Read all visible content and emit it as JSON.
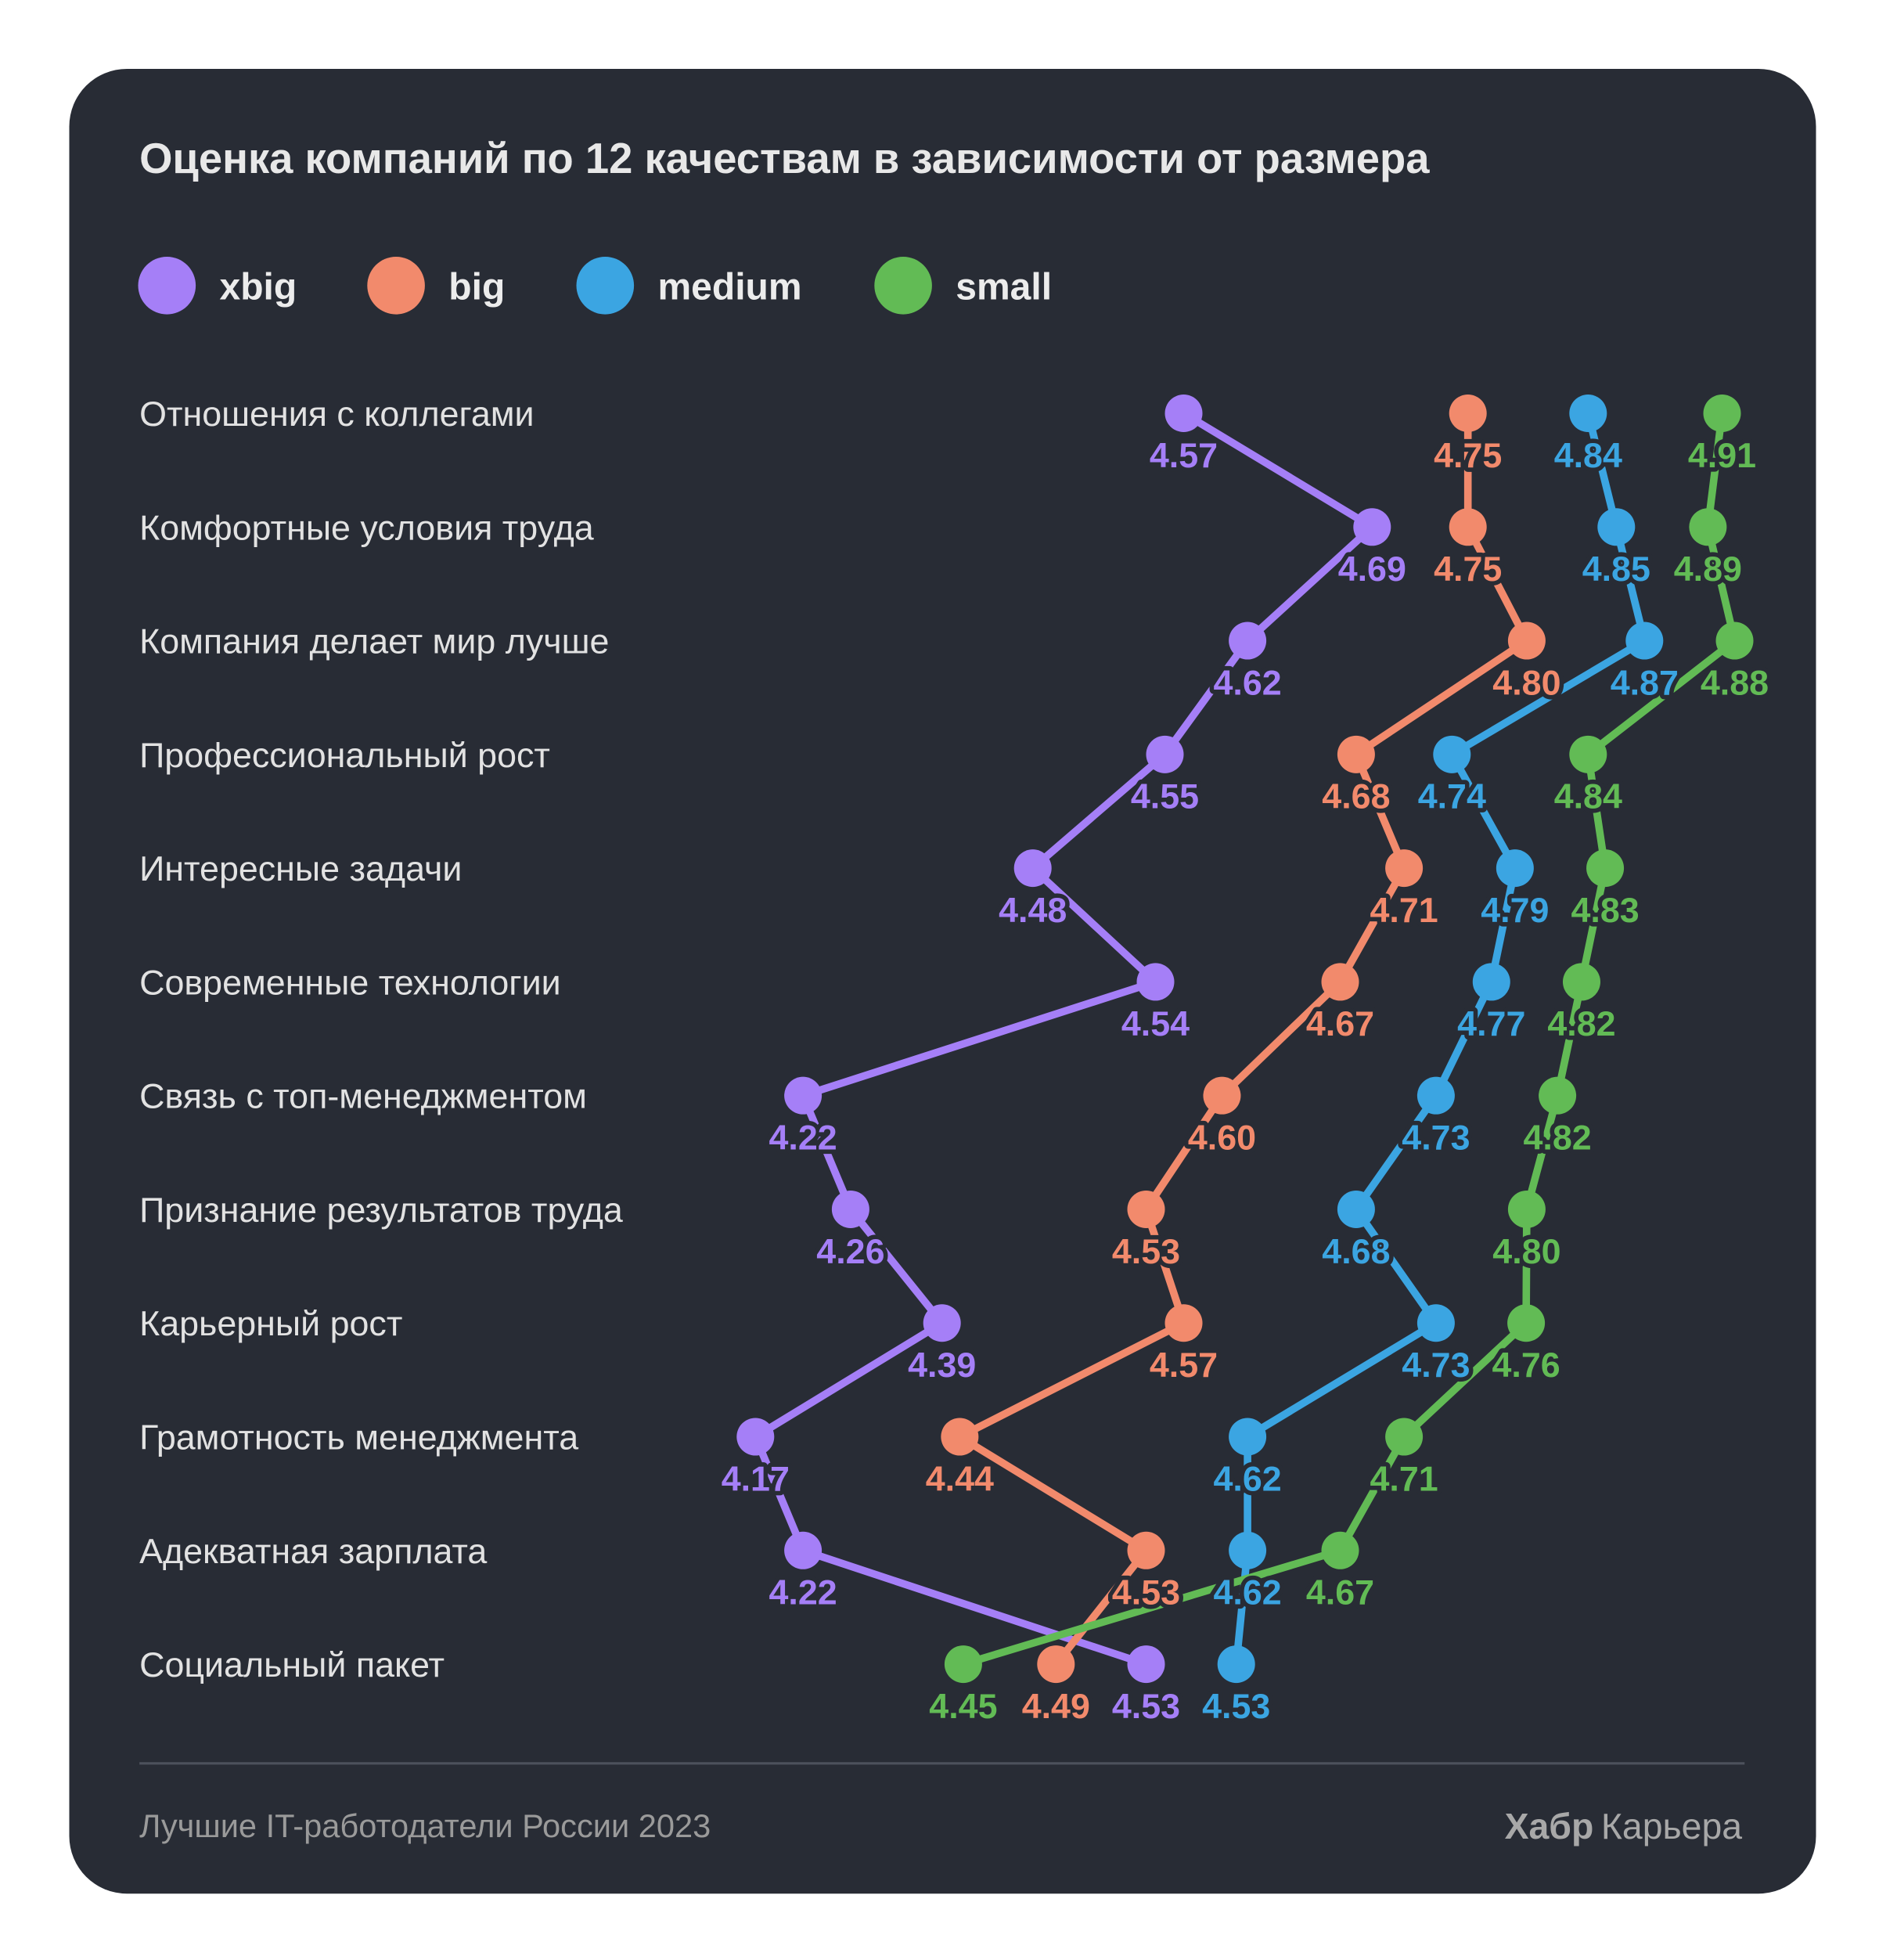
{
  "chart_data": {
    "type": "line",
    "title": "Оценка компаний по 12 качествам в зависимости от размера",
    "orientation": "horizontal",
    "legend_position": "top-left",
    "grid": false,
    "categories": [
      "Отношения с коллегами",
      "Комфортные условия труда",
      "Компания делает мир лучше",
      "Профессиональный рост",
      "Интересные задачи",
      "Современные технологии",
      "Связь с топ-менеджментом",
      "Признание результатов труда",
      "Карьерный рост",
      "Грамотность менеджмента",
      "Адекватная зарплата",
      "Социальный пакет"
    ],
    "series": [
      {
        "name": "xbig",
        "color": "#a57ff7",
        "values": [
          4.57,
          4.69,
          4.62,
          4.55,
          4.48,
          4.54,
          4.22,
          4.26,
          4.39,
          4.17,
          4.22,
          4.53
        ]
      },
      {
        "name": "big",
        "color": "#f28a6c",
        "values": [
          4.75,
          4.75,
          4.8,
          4.68,
          4.71,
          4.67,
          4.6,
          4.53,
          4.57,
          4.44,
          4.53,
          4.49
        ]
      },
      {
        "name": "medium",
        "color": "#3ba5e2",
        "values": [
          4.84,
          4.85,
          4.87,
          4.74,
          4.79,
          4.77,
          4.73,
          4.68,
          4.73,
          4.62,
          4.62,
          4.53
        ]
      },
      {
        "name": "small",
        "color": "#62bb55",
        "values": [
          4.91,
          4.89,
          4.88,
          4.84,
          4.83,
          4.82,
          4.82,
          4.8,
          4.76,
          4.71,
          4.67,
          4.45
        ]
      }
    ]
  },
  "footer": {
    "source": "Лучшие IT-работодатели России 2023",
    "brand_bold": "Хабр",
    "brand_rest": "Карьера"
  },
  "colors": {
    "background": "#282c35"
  }
}
